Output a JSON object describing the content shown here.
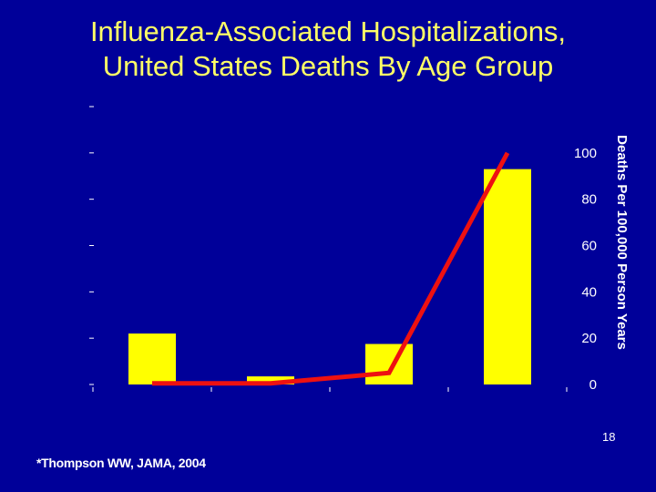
{
  "slide": {
    "title_line1": "Influenza-Associated Hospitalizations,",
    "title_line2": "United States Deaths By Age Group",
    "footnote": "*Thompson WW, JAMA, 2004",
    "page_number": "18"
  },
  "colors": {
    "background": "#000099",
    "title": "#ffff66",
    "bar": "#ffff00",
    "line": "#ee1111",
    "axis": "#ffffff"
  },
  "chart_data": {
    "type": "bar",
    "title": "",
    "xlabel": "",
    "ylabel": "Deaths Per 100,000 Person Years",
    "ylim": [
      0,
      120
    ],
    "y_ticks": [
      "0",
      "20",
      "40",
      "60",
      "80",
      "100"
    ],
    "y_axis_position": "right",
    "categories": [
      "",
      "",
      "",
      ""
    ],
    "series": [
      {
        "type": "bar",
        "values": [
          22,
          3.5,
          17.5,
          93
        ]
      },
      {
        "type": "line",
        "values": [
          0.5,
          0.5,
          5,
          100
        ]
      }
    ],
    "legend": "none",
    "grid": false
  }
}
